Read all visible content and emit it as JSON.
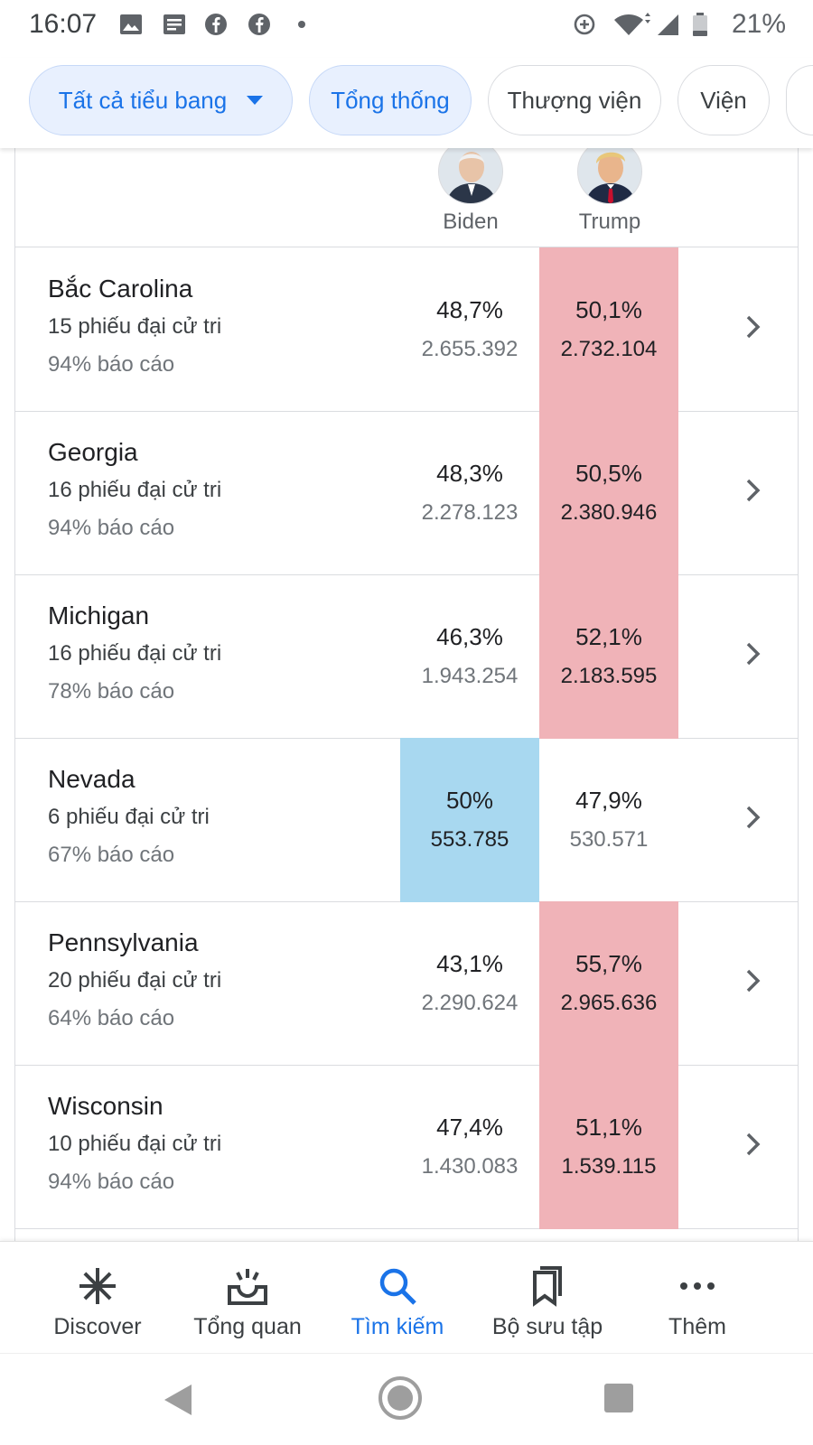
{
  "status_bar": {
    "time": "16:07",
    "battery": "21%"
  },
  "chips": [
    {
      "label": "Tất cả tiểu bang"
    },
    {
      "label": "Tổng thống"
    },
    {
      "label": "Thượng viện"
    },
    {
      "label": "Viện"
    }
  ],
  "candidates": [
    {
      "name": "Biden",
      "color": "#a8d8f0"
    },
    {
      "name": "Trump",
      "color": "#f0b3b8"
    }
  ],
  "states": [
    {
      "name": "Bắc Carolina",
      "electoral": "15 phiếu đại cử tri",
      "reporting": "94% báo cáo",
      "biden_pct": "48,7%",
      "biden_votes": "2.655.392",
      "trump_pct": "50,1%",
      "trump_votes": "2.732.104",
      "leader": "trump"
    },
    {
      "name": "Georgia",
      "electoral": "16 phiếu đại cử tri",
      "reporting": "94% báo cáo",
      "biden_pct": "48,3%",
      "biden_votes": "2.278.123",
      "trump_pct": "50,5%",
      "trump_votes": "2.380.946",
      "leader": "trump"
    },
    {
      "name": "Michigan",
      "electoral": "16 phiếu đại cử tri",
      "reporting": "78% báo cáo",
      "biden_pct": "46,3%",
      "biden_votes": "1.943.254",
      "trump_pct": "52,1%",
      "trump_votes": "2.183.595",
      "leader": "trump"
    },
    {
      "name": "Nevada",
      "electoral": "6 phiếu đại cử tri",
      "reporting": "67% báo cáo",
      "biden_pct": "50%",
      "biden_votes": "553.785",
      "trump_pct": "47,9%",
      "trump_votes": "530.571",
      "leader": "biden"
    },
    {
      "name": "Pennsylvania",
      "electoral": "20 phiếu đại cử tri",
      "reporting": "64% báo cáo",
      "biden_pct": "43,1%",
      "biden_votes": "2.290.624",
      "trump_pct": "55,7%",
      "trump_votes": "2.965.636",
      "leader": "trump"
    },
    {
      "name": "Wisconsin",
      "electoral": "10 phiếu đại cử tri",
      "reporting": "94% báo cáo",
      "biden_pct": "47,4%",
      "biden_votes": "1.430.083",
      "trump_pct": "51,1%",
      "trump_votes": "1.539.115",
      "leader": "trump"
    }
  ],
  "bottom_nav": [
    {
      "label": "Discover",
      "icon": "asterisk-icon"
    },
    {
      "label": "Tổng quan",
      "icon": "updates-tray-icon"
    },
    {
      "label": "Tìm kiếm",
      "icon": "search-icon",
      "active": true
    },
    {
      "label": "Bộ sưu tập",
      "icon": "collections-icon"
    },
    {
      "label": "Thêm",
      "icon": "more-dots-icon"
    }
  ],
  "colors": {
    "accent": "#1a73e8",
    "trump_lead": "#f0b3b8",
    "biden_lead": "#a8d8f0"
  }
}
